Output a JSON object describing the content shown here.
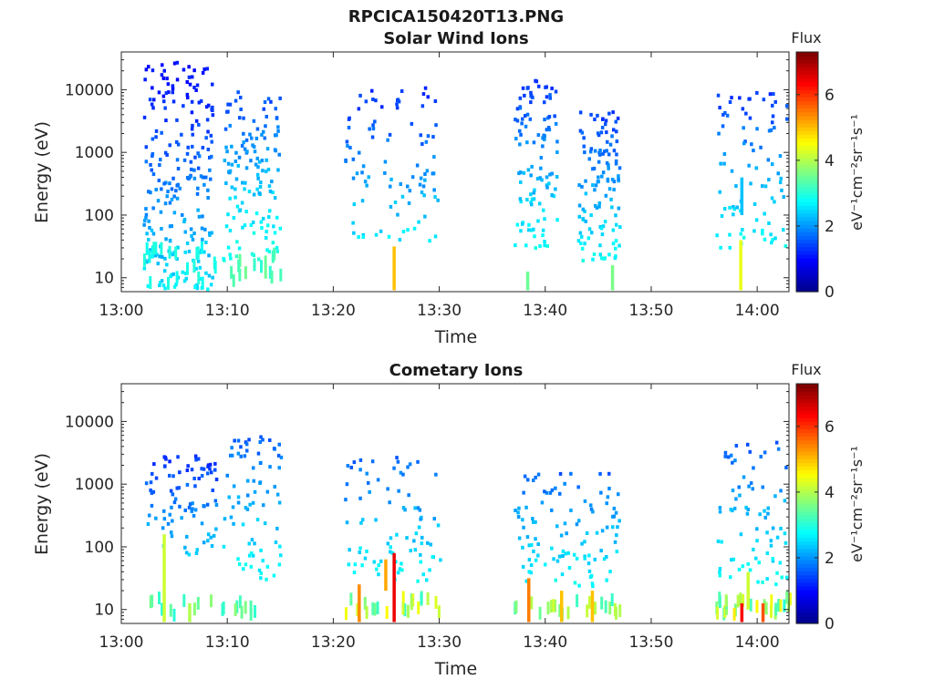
{
  "figure_title": "RPCICA150420T13.PNG",
  "colors": {
    "colormap": [
      "#00008f",
      "#0000ff",
      "#0080ff",
      "#00ffff",
      "#80ff80",
      "#ffff00",
      "#ff8000",
      "#ff0000",
      "#800000"
    ]
  },
  "chart_data": [
    {
      "type": "heatmap",
      "title": "Solar Wind Ions",
      "xlabel": "Time",
      "ylabel": "Energy (eV)",
      "yscale": "log",
      "xticks": [
        "13:00",
        "13:10",
        "13:20",
        "13:30",
        "13:40",
        "13:50",
        "14:00"
      ],
      "xlim_minutes": [
        0,
        63
      ],
      "yticks": [
        "10",
        "100",
        "1000",
        "10000"
      ],
      "ylim": [
        6,
        40000
      ],
      "colorbar": {
        "title": "Flux",
        "label": "eV⁻¹cm⁻²sr⁻¹s⁻¹",
        "ticks": [
          "0",
          "2",
          "4",
          "6"
        ],
        "range": [
          0,
          7.3
        ]
      },
      "clusters": [
        {
          "t": [
            2,
            8.5
          ],
          "logE": [
            0.8,
            4.5
          ],
          "n": 240,
          "v": [
            0.9,
            2.6
          ]
        },
        {
          "t": [
            9.5,
            15
          ],
          "logE": [
            1.3,
            4.0
          ],
          "n": 140,
          "v": [
            1.4,
            3.0
          ]
        },
        {
          "t": [
            21,
            30
          ],
          "logE": [
            1.6,
            4.1
          ],
          "n": 95,
          "v": [
            1.2,
            2.6
          ]
        },
        {
          "t": [
            37,
            41
          ],
          "logE": [
            1.5,
            4.2
          ],
          "n": 110,
          "v": [
            1.3,
            2.8
          ]
        },
        {
          "t": [
            43,
            47
          ],
          "logE": [
            1.3,
            3.7
          ],
          "n": 120,
          "v": [
            1.3,
            2.8
          ]
        },
        {
          "t": [
            56,
            63
          ],
          "logE": [
            1.5,
            4.0
          ],
          "n": 90,
          "v": [
            1.3,
            2.8
          ]
        }
      ],
      "lowbands": [
        {
          "t": [
            2,
            9
          ],
          "logE": [
            0.8,
            1.6
          ],
          "n": 30,
          "v": [
            2.8,
            3.0
          ]
        },
        {
          "t": [
            9.8,
            15
          ],
          "logE": [
            0.8,
            1.5
          ],
          "n": 20,
          "v": [
            3.0,
            3.6
          ]
        }
      ],
      "spikes": [
        {
          "t": 25.6,
          "logE": [
            0.8,
            1.5
          ],
          "v": 5.0
        },
        {
          "t": 38.2,
          "logE": [
            0.8,
            1.1
          ],
          "v": 3.5
        },
        {
          "t": 46.2,
          "logE": [
            0.8,
            1.2
          ],
          "v": 3.6
        },
        {
          "t": 58.3,
          "logE": [
            0.8,
            1.6
          ],
          "v": 4.4
        },
        {
          "t": 58.4,
          "logE": [
            2.0,
            2.6
          ],
          "v": 2.3
        }
      ]
    },
    {
      "type": "heatmap",
      "title": "Cometary Ions",
      "xlabel": "Time",
      "ylabel": "Energy (eV)",
      "yscale": "log",
      "xticks": [
        "13:00",
        "13:10",
        "13:20",
        "13:30",
        "13:40",
        "13:50",
        "14:00"
      ],
      "xlim_minutes": [
        0,
        63
      ],
      "yticks": [
        "10",
        "100",
        "1000",
        "10000"
      ],
      "ylim": [
        6,
        40000
      ],
      "colorbar": {
        "title": "Flux",
        "label": "eV⁻¹cm⁻²sr⁻¹s⁻¹",
        "ticks": [
          "0",
          "2",
          "4",
          "6"
        ],
        "range": [
          0,
          7.3
        ]
      },
      "clusters": [
        {
          "t": [
            2,
            9
          ],
          "logE": [
            1.9,
            3.5
          ],
          "n": 90,
          "v": [
            1.2,
            2.4
          ]
        },
        {
          "t": [
            9.5,
            15
          ],
          "logE": [
            1.5,
            3.8
          ],
          "n": 80,
          "v": [
            1.6,
            2.8
          ]
        },
        {
          "t": [
            21,
            30
          ],
          "logE": [
            1.4,
            3.5
          ],
          "n": 85,
          "v": [
            1.6,
            2.8
          ]
        },
        {
          "t": [
            37,
            47
          ],
          "logE": [
            1.4,
            3.2
          ],
          "n": 110,
          "v": [
            1.6,
            2.8
          ]
        },
        {
          "t": [
            56,
            63
          ],
          "logE": [
            1.4,
            3.7
          ],
          "n": 80,
          "v": [
            1.6,
            2.8
          ]
        }
      ],
      "lowbands": [
        {
          "t": [
            2,
            15
          ],
          "logE": [
            0.8,
            1.3
          ],
          "n": 40,
          "v": [
            3.0,
            3.8
          ]
        },
        {
          "t": [
            21,
            30
          ],
          "logE": [
            0.8,
            1.3
          ],
          "n": 40,
          "v": [
            3.0,
            4.6
          ]
        },
        {
          "t": [
            37,
            47
          ],
          "logE": [
            0.8,
            1.3
          ],
          "n": 45,
          "v": [
            3.0,
            4.2
          ]
        },
        {
          "t": [
            56,
            63
          ],
          "logE": [
            0.8,
            1.3
          ],
          "n": 45,
          "v": [
            3.0,
            4.8
          ]
        }
      ],
      "spikes": [
        {
          "t": 3.9,
          "logE": [
            0.8,
            2.2
          ],
          "v": 4.2
        },
        {
          "t": 6.3,
          "logE": [
            0.8,
            1.1
          ],
          "v": 4.0
        },
        {
          "t": 22.3,
          "logE": [
            0.8,
            1.4
          ],
          "v": 5.4
        },
        {
          "t": 24.8,
          "logE": [
            1.3,
            1.8
          ],
          "v": 5.2
        },
        {
          "t": 25.6,
          "logE": [
            0.8,
            1.9
          ],
          "v": 6.5
        },
        {
          "t": 38.3,
          "logE": [
            0.8,
            1.5
          ],
          "v": 5.5
        },
        {
          "t": 41.4,
          "logE": [
            0.8,
            1.3
          ],
          "v": 5.0
        },
        {
          "t": 44.3,
          "logE": [
            0.8,
            1.3
          ],
          "v": 5.0
        },
        {
          "t": 58.4,
          "logE": [
            0.8,
            1.1
          ],
          "v": 6.4
        },
        {
          "t": 59.0,
          "logE": [
            1.0,
            1.6
          ],
          "v": 4.2
        },
        {
          "t": 60.4,
          "logE": [
            0.8,
            1.1
          ],
          "v": 5.8
        }
      ]
    }
  ]
}
